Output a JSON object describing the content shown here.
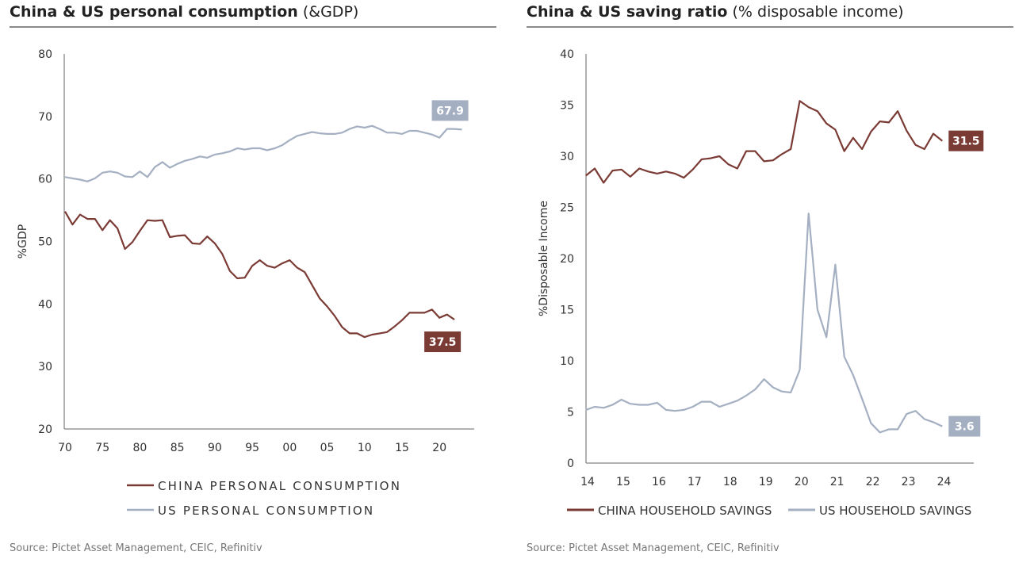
{
  "colors": {
    "china": "#7b3b35",
    "us": "#a4b0c2"
  },
  "chart_data": [
    {
      "type": "line",
      "title": "China & US personal consumption",
      "subtitle": "(&GDP)",
      "ylabel": "%GDP",
      "xlabel": "",
      "ylim": [
        20,
        80
      ],
      "yticks": [
        20,
        30,
        40,
        50,
        60,
        70,
        80
      ],
      "xlim": [
        1970,
        2024
      ],
      "xticks": [
        {
          "value": 1970,
          "label": "70"
        },
        {
          "value": 1975,
          "label": "75"
        },
        {
          "value": 1980,
          "label": "80"
        },
        {
          "value": 1985,
          "label": "85"
        },
        {
          "value": 1990,
          "label": "90"
        },
        {
          "value": 1995,
          "label": "95"
        },
        {
          "value": 2000,
          "label": "00"
        },
        {
          "value": 2005,
          "label": "05"
        },
        {
          "value": 2010,
          "label": "10"
        },
        {
          "value": 2015,
          "label": "15"
        },
        {
          "value": 2020,
          "label": "20"
        }
      ],
      "legend_position": "bottom",
      "series": [
        {
          "name": "CHINA PERSONAL CONSUMPTION",
          "color": "#7b3b35",
          "end_label": "37.5",
          "x": [
            1970,
            1971,
            1972,
            1973,
            1974,
            1975,
            1976,
            1977,
            1978,
            1979,
            1980,
            1981,
            1982,
            1983,
            1984,
            1985,
            1986,
            1987,
            1988,
            1989,
            1990,
            1991,
            1992,
            1993,
            1994,
            1995,
            1996,
            1997,
            1998,
            1999,
            2000,
            2001,
            2002,
            2003,
            2004,
            2005,
            2006,
            2007,
            2008,
            2009,
            2010,
            2011,
            2012,
            2013,
            2014,
            2015,
            2016,
            2017,
            2018,
            2019,
            2020,
            2021,
            2022
          ],
          "y": [
            54.8,
            52.7,
            54.3,
            53.6,
            53.6,
            51.8,
            53.4,
            52.1,
            48.8,
            49.9,
            51.7,
            53.4,
            53.3,
            53.4,
            50.7,
            50.9,
            51.0,
            49.7,
            49.6,
            50.8,
            49.7,
            48.0,
            45.3,
            44.1,
            44.2,
            46.1,
            47.0,
            46.1,
            45.8,
            46.5,
            47.0,
            45.8,
            45.1,
            43.0,
            40.9,
            39.6,
            38.1,
            36.3,
            35.3,
            35.3,
            34.7,
            35.1,
            35.3,
            35.5,
            36.4,
            37.4,
            38.6,
            38.6,
            38.6,
            39.1,
            37.8,
            38.3,
            37.5
          ]
        },
        {
          "name": "US PERSONAL CONSUMPTION",
          "color": "#a4b0c2",
          "end_label": "67.9",
          "x": [
            1970,
            1971,
            1972,
            1973,
            1974,
            1975,
            1976,
            1977,
            1978,
            1979,
            1980,
            1981,
            1982,
            1983,
            1984,
            1985,
            1986,
            1987,
            1988,
            1989,
            1990,
            1991,
            1992,
            1993,
            1994,
            1995,
            1996,
            1997,
            1998,
            1999,
            2000,
            2001,
            2002,
            2003,
            2004,
            2005,
            2006,
            2007,
            2008,
            2009,
            2010,
            2011,
            2012,
            2013,
            2014,
            2015,
            2016,
            2017,
            2018,
            2019,
            2020,
            2021,
            2022,
            2023
          ],
          "y": [
            60.3,
            60.1,
            59.9,
            59.6,
            60.1,
            61.0,
            61.2,
            61.0,
            60.4,
            60.3,
            61.2,
            60.3,
            61.9,
            62.7,
            61.8,
            62.4,
            62.9,
            63.2,
            63.6,
            63.4,
            63.9,
            64.1,
            64.4,
            64.9,
            64.7,
            64.9,
            64.9,
            64.6,
            64.9,
            65.4,
            66.2,
            66.9,
            67.2,
            67.5,
            67.3,
            67.2,
            67.2,
            67.4,
            68.0,
            68.4,
            68.2,
            68.5,
            68.0,
            67.4,
            67.4,
            67.2,
            67.7,
            67.7,
            67.4,
            67.1,
            66.6,
            68.0,
            68.0,
            67.9
          ]
        }
      ]
    },
    {
      "type": "line",
      "title": "China & US saving ratio",
      "subtitle": "(% disposable income)",
      "ylabel": "%Disposable Income",
      "xlabel": "",
      "ylim": [
        0,
        40
      ],
      "yticks": [
        0,
        5,
        10,
        15,
        20,
        25,
        30,
        35,
        40
      ],
      "xlim": [
        2014,
        2024.7
      ],
      "xticks": [
        {
          "value": 2014,
          "label": "14"
        },
        {
          "value": 2015,
          "label": "15"
        },
        {
          "value": 2016,
          "label": "16"
        },
        {
          "value": 2017,
          "label": "17"
        },
        {
          "value": 2018,
          "label": "18"
        },
        {
          "value": 2019,
          "label": "19"
        },
        {
          "value": 2020,
          "label": "20"
        },
        {
          "value": 2021,
          "label": "21"
        },
        {
          "value": 2022,
          "label": "22"
        },
        {
          "value": 2023,
          "label": "23"
        },
        {
          "value": 2024,
          "label": "24"
        }
      ],
      "legend_position": "bottom",
      "series": [
        {
          "name": "CHINA HOUSEHOLD SAVINGS",
          "color": "#7b3b35",
          "end_label": "31.5",
          "x": [
            2013.95,
            2014.2,
            2014.45,
            2014.7,
            2014.95,
            2015.2,
            2015.45,
            2015.7,
            2015.95,
            2016.2,
            2016.45,
            2016.7,
            2016.95,
            2017.2,
            2017.45,
            2017.7,
            2017.95,
            2018.2,
            2018.45,
            2018.7,
            2018.95,
            2019.2,
            2019.45,
            2019.7,
            2019.95,
            2020.2,
            2020.45,
            2020.7,
            2020.95,
            2021.2,
            2021.45,
            2021.7,
            2021.95,
            2022.2,
            2022.45,
            2022.7,
            2022.95,
            2023.2,
            2023.45,
            2023.7,
            2023.95
          ],
          "y": [
            28.1,
            28.8,
            27.4,
            28.6,
            28.7,
            28.0,
            28.8,
            28.5,
            28.3,
            28.5,
            28.3,
            27.9,
            28.7,
            29.7,
            29.8,
            30.0,
            29.2,
            28.8,
            30.5,
            30.5,
            29.5,
            29.6,
            30.2,
            30.7,
            35.4,
            34.8,
            34.4,
            33.2,
            32.6,
            30.5,
            31.8,
            30.7,
            32.4,
            33.4,
            33.3,
            34.4,
            32.5,
            31.1,
            30.7,
            32.2,
            31.5
          ]
        },
        {
          "name": "US HOUSEHOLD SAVINGS",
          "color": "#a4b0c2",
          "end_label": "3.6",
          "x": [
            2013.95,
            2014.2,
            2014.45,
            2014.7,
            2014.95,
            2015.2,
            2015.45,
            2015.7,
            2015.95,
            2016.2,
            2016.45,
            2016.7,
            2016.95,
            2017.2,
            2017.45,
            2017.7,
            2017.95,
            2018.2,
            2018.45,
            2018.7,
            2018.95,
            2019.2,
            2019.45,
            2019.7,
            2019.95,
            2020.2,
            2020.45,
            2020.7,
            2020.95,
            2021.2,
            2021.45,
            2021.7,
            2021.95,
            2022.2,
            2022.45,
            2022.7,
            2022.95,
            2023.2,
            2023.45,
            2023.7,
            2023.95
          ],
          "y": [
            5.2,
            5.5,
            5.4,
            5.7,
            6.2,
            5.8,
            5.7,
            5.7,
            5.9,
            5.2,
            5.1,
            5.2,
            5.5,
            6.0,
            6.0,
            5.5,
            5.8,
            6.1,
            6.6,
            7.2,
            8.2,
            7.4,
            7.0,
            6.9,
            9.1,
            24.4,
            15.0,
            12.3,
            19.4,
            10.4,
            8.6,
            6.3,
            3.9,
            3.0,
            3.3,
            3.3,
            4.8,
            5.1,
            4.3,
            4.0,
            3.6
          ]
        }
      ]
    }
  ],
  "panels": [
    {
      "title": "China & US personal consumption",
      "subtitle": "(&GDP)",
      "source": "Source: Pictet Asset Management, CEIC, Refinitiv"
    },
    {
      "title": "China & US saving ratio",
      "subtitle": "(% disposable income)",
      "source": "Source: Pictet Asset Management, CEIC, Refinitiv"
    }
  ]
}
